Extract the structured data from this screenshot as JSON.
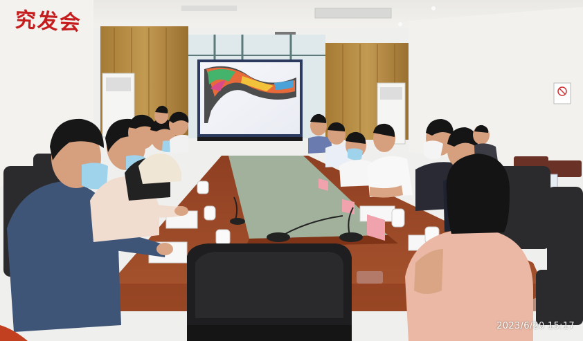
{
  "photo": {
    "wall_sign_text": "究发会",
    "timestamp": "2023/6/20 15:17",
    "screen_content": "map",
    "colors": {
      "wall": "#efefed",
      "curtain": "#b48c42",
      "table": "#9b4a2a",
      "table_inset": "#9fae98",
      "chair": "#2a2a2c",
      "sign_red": "#c51d1d"
    }
  }
}
